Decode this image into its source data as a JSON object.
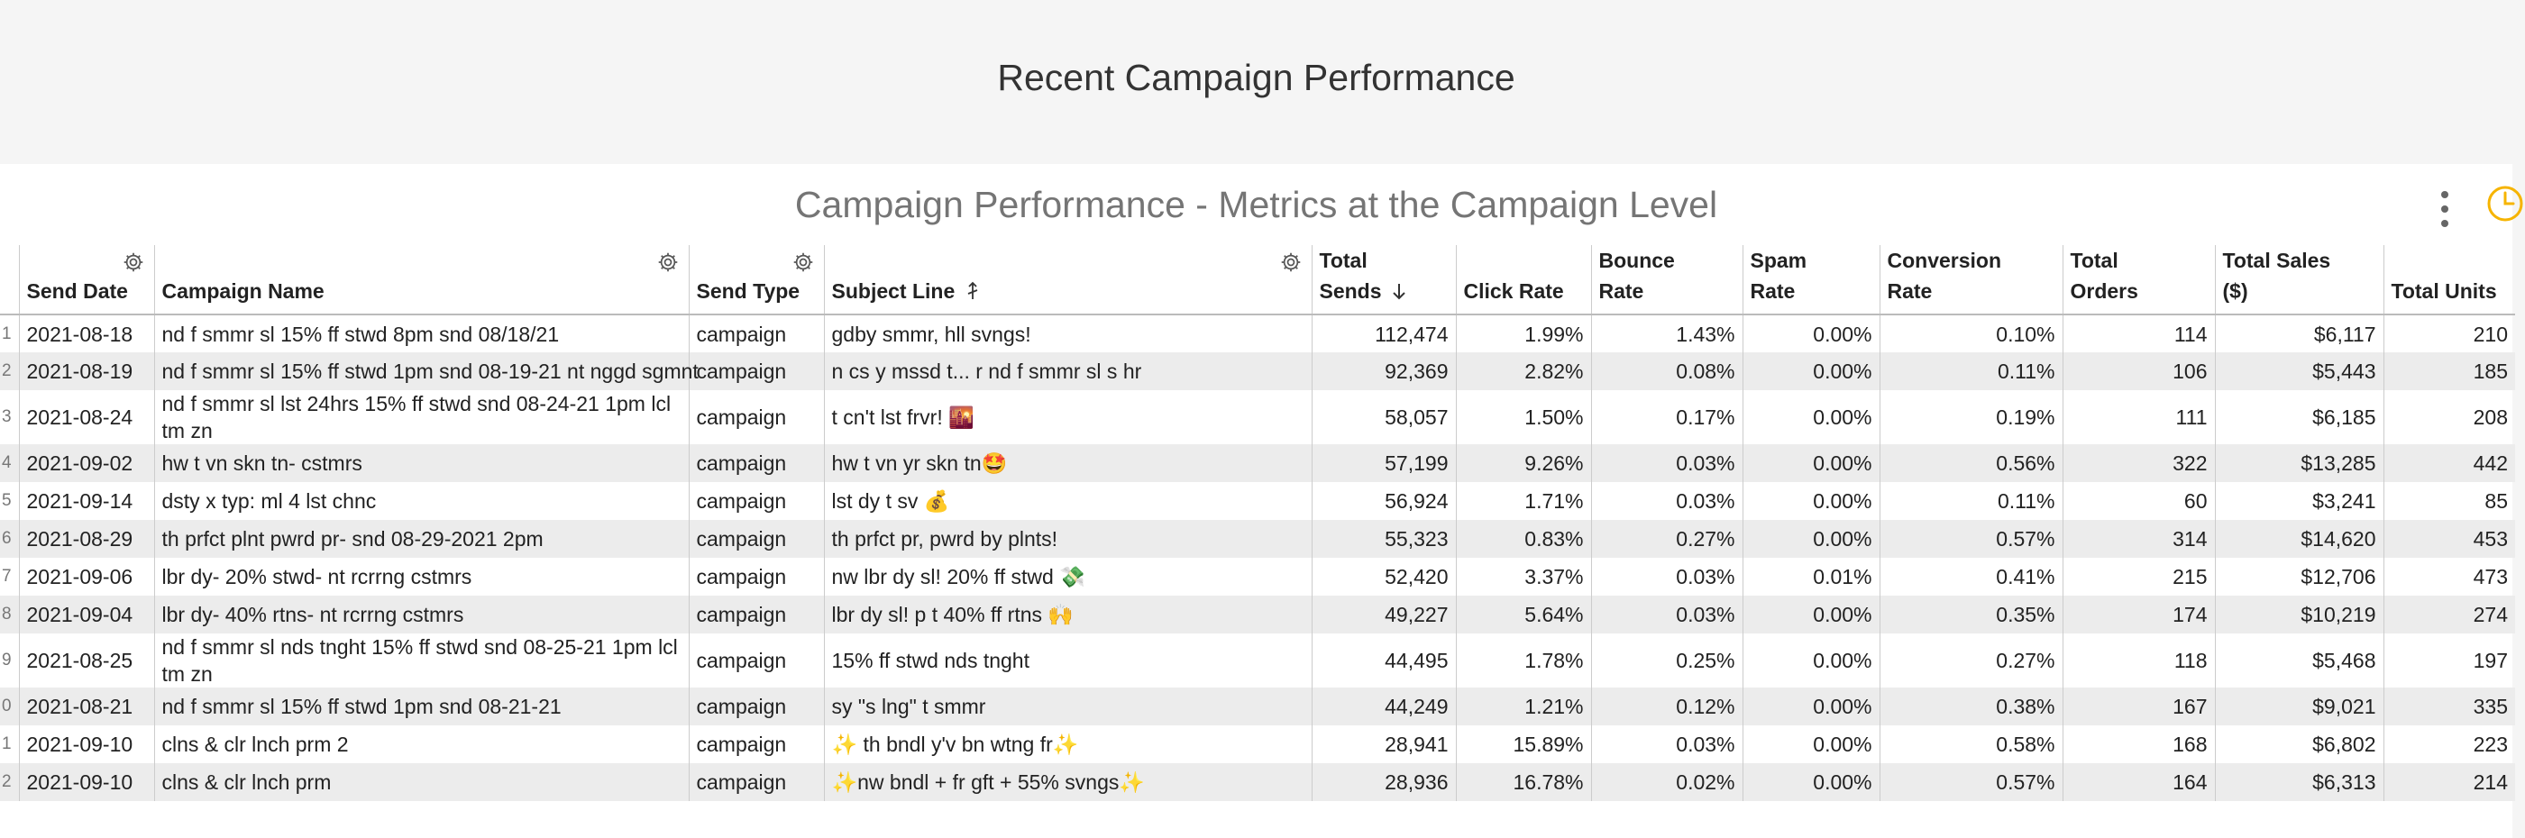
{
  "page_title": "Recent Campaign Performance",
  "card_title": "Campaign Performance - Metrics at the Campaign Level",
  "columns": {
    "send_date": "Send Date",
    "campaign_name": "Campaign Name",
    "send_type": "Send Type",
    "subject_line": "Subject Line",
    "total_sends_1": "Total",
    "total_sends_2": "Sends",
    "click_rate": "Click Rate",
    "bounce_rate_1": "Bounce",
    "bounce_rate_2": "Rate",
    "spam_rate_1": "Spam",
    "spam_rate_2": "Rate",
    "conversion_rate_1": "Conversion",
    "conversion_rate_2": "Rate",
    "total_orders_1": "Total",
    "total_orders_2": "Orders",
    "total_sales_1": "Total Sales",
    "total_sales_2": "($)",
    "total_units": "Total Units"
  },
  "rows": [
    {
      "n": "1",
      "date": "2021-08-18",
      "name": "nd f smmr sl 15% ff stwd 8pm snd 08/18/21",
      "type": "campaign",
      "subject": "gdby smmr, hll svngs!",
      "sends": "112,474",
      "click": "1.99%",
      "bounce": "1.43%",
      "spam": "0.00%",
      "conv": "0.10%",
      "orders": "114",
      "sales": "$6,117",
      "units": "210"
    },
    {
      "n": "2",
      "date": "2021-08-19",
      "name": "nd f smmr sl 15% ff stwd 1pm snd 08-19-21 nt nggd sgmnt",
      "type": "campaign",
      "subject": "n cs y mssd t... r nd f smmr sl s hr",
      "sends": "92,369",
      "click": "2.82%",
      "bounce": "0.08%",
      "spam": "0.00%",
      "conv": "0.11%",
      "orders": "106",
      "sales": "$5,443",
      "units": "185"
    },
    {
      "n": "3",
      "date": "2021-08-24",
      "name": "nd f smmr sl lst 24hrs 15% ff stwd snd 08-24-21 1pm lcl tm zn",
      "type": "campaign",
      "subject": "t cn't lst frvr! 🌇",
      "sends": "58,057",
      "click": "1.50%",
      "bounce": "0.17%",
      "spam": "0.00%",
      "conv": "0.19%",
      "orders": "111",
      "sales": "$6,185",
      "units": "208"
    },
    {
      "n": "4",
      "date": "2021-09-02",
      "name": "hw t vn skn tn- cstmrs",
      "type": "campaign",
      "subject": "hw t vn yr skn tn🤩",
      "sends": "57,199",
      "click": "9.26%",
      "bounce": "0.03%",
      "spam": "0.00%",
      "conv": "0.56%",
      "orders": "322",
      "sales": "$13,285",
      "units": "442"
    },
    {
      "n": "5",
      "date": "2021-09-14",
      "name": "dsty x typ: ml 4 lst chnc",
      "type": "campaign",
      "subject": "lst dy t sv 💰",
      "sends": "56,924",
      "click": "1.71%",
      "bounce": "0.03%",
      "spam": "0.00%",
      "conv": "0.11%",
      "orders": "60",
      "sales": "$3,241",
      "units": "85"
    },
    {
      "n": "6",
      "date": "2021-08-29",
      "name": "th prfct plnt pwrd pr- snd 08-29-2021 2pm",
      "type": "campaign",
      "subject": "th prfct pr, pwrd by plnts!",
      "sends": "55,323",
      "click": "0.83%",
      "bounce": "0.27%",
      "spam": "0.00%",
      "conv": "0.57%",
      "orders": "314",
      "sales": "$14,620",
      "units": "453"
    },
    {
      "n": "7",
      "date": "2021-09-06",
      "name": "lbr dy- 20% stwd- nt rcrrng cstmrs",
      "type": "campaign",
      "subject": "nw lbr dy sl! 20% ff stwd 💸",
      "sends": "52,420",
      "click": "3.37%",
      "bounce": "0.03%",
      "spam": "0.01%",
      "conv": "0.41%",
      "orders": "215",
      "sales": "$12,706",
      "units": "473"
    },
    {
      "n": "8",
      "date": "2021-09-04",
      "name": "lbr dy- 40% rtns- nt rcrrng cstmrs",
      "type": "campaign",
      "subject": "lbr dy sl! p t 40% ff rtns 🙌",
      "sends": "49,227",
      "click": "5.64%",
      "bounce": "0.03%",
      "spam": "0.00%",
      "conv": "0.35%",
      "orders": "174",
      "sales": "$10,219",
      "units": "274"
    },
    {
      "n": "9",
      "date": "2021-08-25",
      "name": "nd f smmr sl nds tnght 15% ff stwd snd 08-25-21 1pm lcl tm zn",
      "type": "campaign",
      "subject": "15% ff stwd nds tnght",
      "sends": "44,495",
      "click": "1.78%",
      "bounce": "0.25%",
      "spam": "0.00%",
      "conv": "0.27%",
      "orders": "118",
      "sales": "$5,468",
      "units": "197"
    },
    {
      "n": "0",
      "date": "2021-08-21",
      "name": "nd f smmr sl 15% ff stwd 1pm snd 08-21-21",
      "type": "campaign",
      "subject": "sy \"s lng\" t smmr",
      "sends": "44,249",
      "click": "1.21%",
      "bounce": "0.12%",
      "spam": "0.00%",
      "conv": "0.38%",
      "orders": "167",
      "sales": "$9,021",
      "units": "335"
    },
    {
      "n": "1",
      "date": "2021-09-10",
      "name": "clns & clr lnch prm 2",
      "type": "campaign",
      "subject": "✨ th bndl y'v bn wtng fr✨",
      "sends": "28,941",
      "click": "15.89%",
      "bounce": "0.03%",
      "spam": "0.00%",
      "conv": "0.58%",
      "orders": "168",
      "sales": "$6,802",
      "units": "223"
    },
    {
      "n": "2",
      "date": "2021-09-10",
      "name": "clns & clr lnch prm",
      "type": "campaign",
      "subject": "✨nw bndl + fr gft + 55% svngs✨",
      "sends": "28,936",
      "click": "16.78%",
      "bounce": "0.02%",
      "spam": "0.00%",
      "conv": "0.57%",
      "orders": "164",
      "sales": "$6,313",
      "units": "214"
    }
  ],
  "colors": {
    "background": "#f5f5f5",
    "card": "#ffffff",
    "stripe": "#ececec",
    "accent": "#f6b400"
  }
}
